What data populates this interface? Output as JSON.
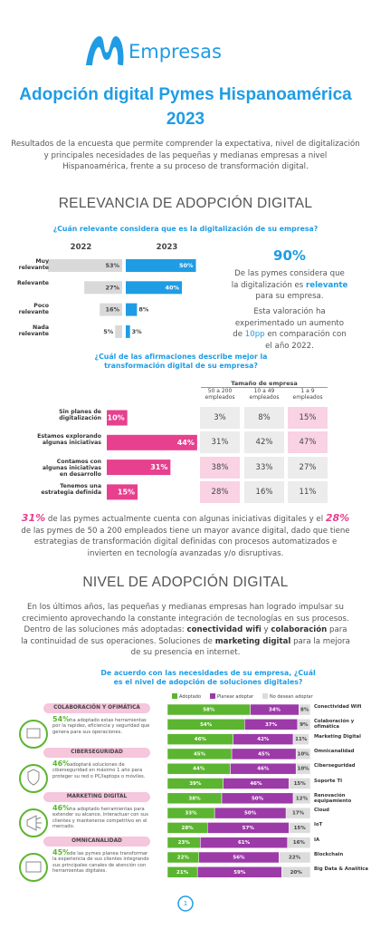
{
  "header": {
    "brand": "Empresas",
    "title_line1": "Adopción digital Pymes Hispanoamérica",
    "title_line2": "2023",
    "intro": "Resultados de la encuesta que permite comprender la expectativa, nivel de digitalización y principales necesidades de las pequeñas y medianas empresas a nivel Hispanoamérica, frente a su proceso de transformación digital."
  },
  "section1": {
    "heading": "RELEVANCIA DE ADOPCIÓN DIGITAL",
    "stat": "90%",
    "stat_text": [
      "De las pymes considera que la digitalización es ",
      "relevante",
      " para su empresa."
    ],
    "stat_note": [
      "Esta valoración ha experimentado un aumento de ",
      "10pp",
      " en comparación con el año 2022."
    ]
  },
  "chart_data": [
    {
      "type": "paired_bar",
      "title": "¿Cuán relevante considera que es la digitalización de su empresa?",
      "categories": [
        "Muy relevante",
        "Relevante",
        "Poco relevante",
        "Nada relevante"
      ],
      "series": [
        {
          "name": "2022",
          "color": "#d9d9d9",
          "values": [
            53,
            27,
            16,
            5
          ],
          "value_labels": [
            "53%",
            "27%",
            "16%",
            "5%"
          ]
        },
        {
          "name": "2023",
          "color": "#1f9ce4",
          "values": [
            50,
            40,
            8,
            3
          ],
          "value_labels": [
            "50%",
            "40%",
            "8%",
            "3%"
          ]
        }
      ],
      "xlim": [
        0,
        100
      ]
    },
    {
      "type": "bar",
      "title": "¿Cuál de las afirmaciones describe mejor la transformación digital de su empresa?",
      "categories": [
        "Sin planes de digitalización",
        "Estamos explorando algunas iniciativas",
        "Contamos con algunas iniciativas en desarrollo",
        "Tenemos una estrategia definida"
      ],
      "values": [
        10,
        44,
        31,
        15
      ],
      "value_labels": [
        "10%",
        "44%",
        "31%",
        "15%"
      ],
      "color": "#e6408e",
      "xlim": [
        0,
        100
      ]
    },
    {
      "type": "stacked_bar",
      "title": "De acuerdo con las necesidades de su empresa, ¿Cuál es el nivel de adopción de soluciones digitales?",
      "categories": [
        "Conectividad Wifi",
        "Colaboración y ofimática",
        "Marketing Digital",
        "Omnicanalidad",
        "Ciberseguridad",
        "Soporte TI",
        "Renovación equipamiento",
        "Cloud",
        "IoT",
        "IA",
        "Blockchain",
        "Big Data & Analítica"
      ],
      "series": [
        {
          "name": "Adoptado",
          "color": "#5cb531",
          "values": [
            58,
            54,
            46,
            45,
            44,
            39,
            38,
            33,
            28,
            23,
            22,
            21
          ],
          "value_labels": [
            "58%",
            "54%",
            "46%",
            "45%",
            "44%",
            "39%",
            "38%",
            "33%",
            "28%",
            "23%",
            "22%",
            "21%"
          ]
        },
        {
          "name": "Planear adoptar",
          "color": "#9c3aa8",
          "values": [
            34,
            37,
            42,
            45,
            46,
            46,
            50,
            50,
            57,
            61,
            56,
            59
          ],
          "value_labels": [
            "34%",
            "37%",
            "42%",
            "45%",
            "46%",
            "46%",
            "50%",
            "50%",
            "57%",
            "61%",
            "56%",
            "59%"
          ]
        },
        {
          "name": "No desean adoptar",
          "color": "#dcdcdc",
          "values": [
            8,
            9,
            11,
            10,
            10,
            15,
            12,
            17,
            15,
            16,
            22,
            20
          ],
          "value_labels": [
            "8%",
            "9%",
            "11%",
            "10%",
            "10%",
            "15%",
            "12%",
            "17%",
            "15%",
            "16%",
            "22%",
            "20%"
          ]
        }
      ],
      "xlim": [
        0,
        100
      ],
      "legend": "top"
    }
  ],
  "size_table": {
    "title": "Tamaño de empresa",
    "columns": [
      "50 a 200 empleados",
      "10 a 49 empleados",
      "1 a 9 empleados"
    ],
    "rows": [
      [
        "3%",
        "8%",
        "15%"
      ],
      [
        "31%",
        "42%",
        "47%"
      ],
      [
        "38%",
        "33%",
        "27%"
      ],
      [
        "28%",
        "16%",
        "11%"
      ]
    ],
    "highlight_color": "#f9d2e4",
    "highlighted": [
      [
        2,
        0
      ],
      [
        3,
        0
      ],
      [
        0,
        2
      ],
      [
        1,
        2
      ]
    ]
  },
  "highlight_text": [
    "31%",
    " de las pymes actualmente cuenta con algunas iniciativas digitales y el ",
    "28%",
    " de las pymes de 50 a 200 empleados tiene un mayor avance digital, dado que tiene estrategias de transformación digital definidas con procesos automatizados e invierten en tecnología avanzadas y/o disruptivas."
  ],
  "section2": {
    "heading": "NIVEL DE ADOPCIÓN DIGITAL",
    "intro": [
      "En los últimos años, las pequeñas y medianas empresas han logrado impulsar su crecimiento aprovechando la constante integración de tecnologías en sus procesos. Dentro de las soluciones más adoptadas: ",
      "conectividad wifi",
      " y ",
      "colaboración",
      " para la continuidad de sus operaciones. Soluciones de ",
      "marketing digital",
      " para la mejora de su presencia en internet."
    ]
  },
  "cards": [
    {
      "title": "COLABORACIÓN Y OFIMÁTICA",
      "stat": "54%",
      "text": "ha adoptado estas herramientas por la rapidez, eficiencia y seguridad que genera para sus operaciones."
    },
    {
      "title": "CIBERSEGURIDAD",
      "stat": "46%",
      "text": "adoptará soluciones de ciberseguridad en máximo 1 año para proteger su red o PC/laptops o móviles."
    },
    {
      "title": "MARKETING DIGITAL",
      "stat": "46%",
      "text": "ha adoptado herramientas para extender su alcance, interactuar con sus clientes y mantenerse competitivo en el mercado."
    },
    {
      "title": "OMNICANALIDAD",
      "stat": "45%",
      "text": "de las pymes planea transformar la experiencia de sus clientes integrando sus principales canales de atención con herramientas digitales."
    }
  ],
  "page_number": "1"
}
